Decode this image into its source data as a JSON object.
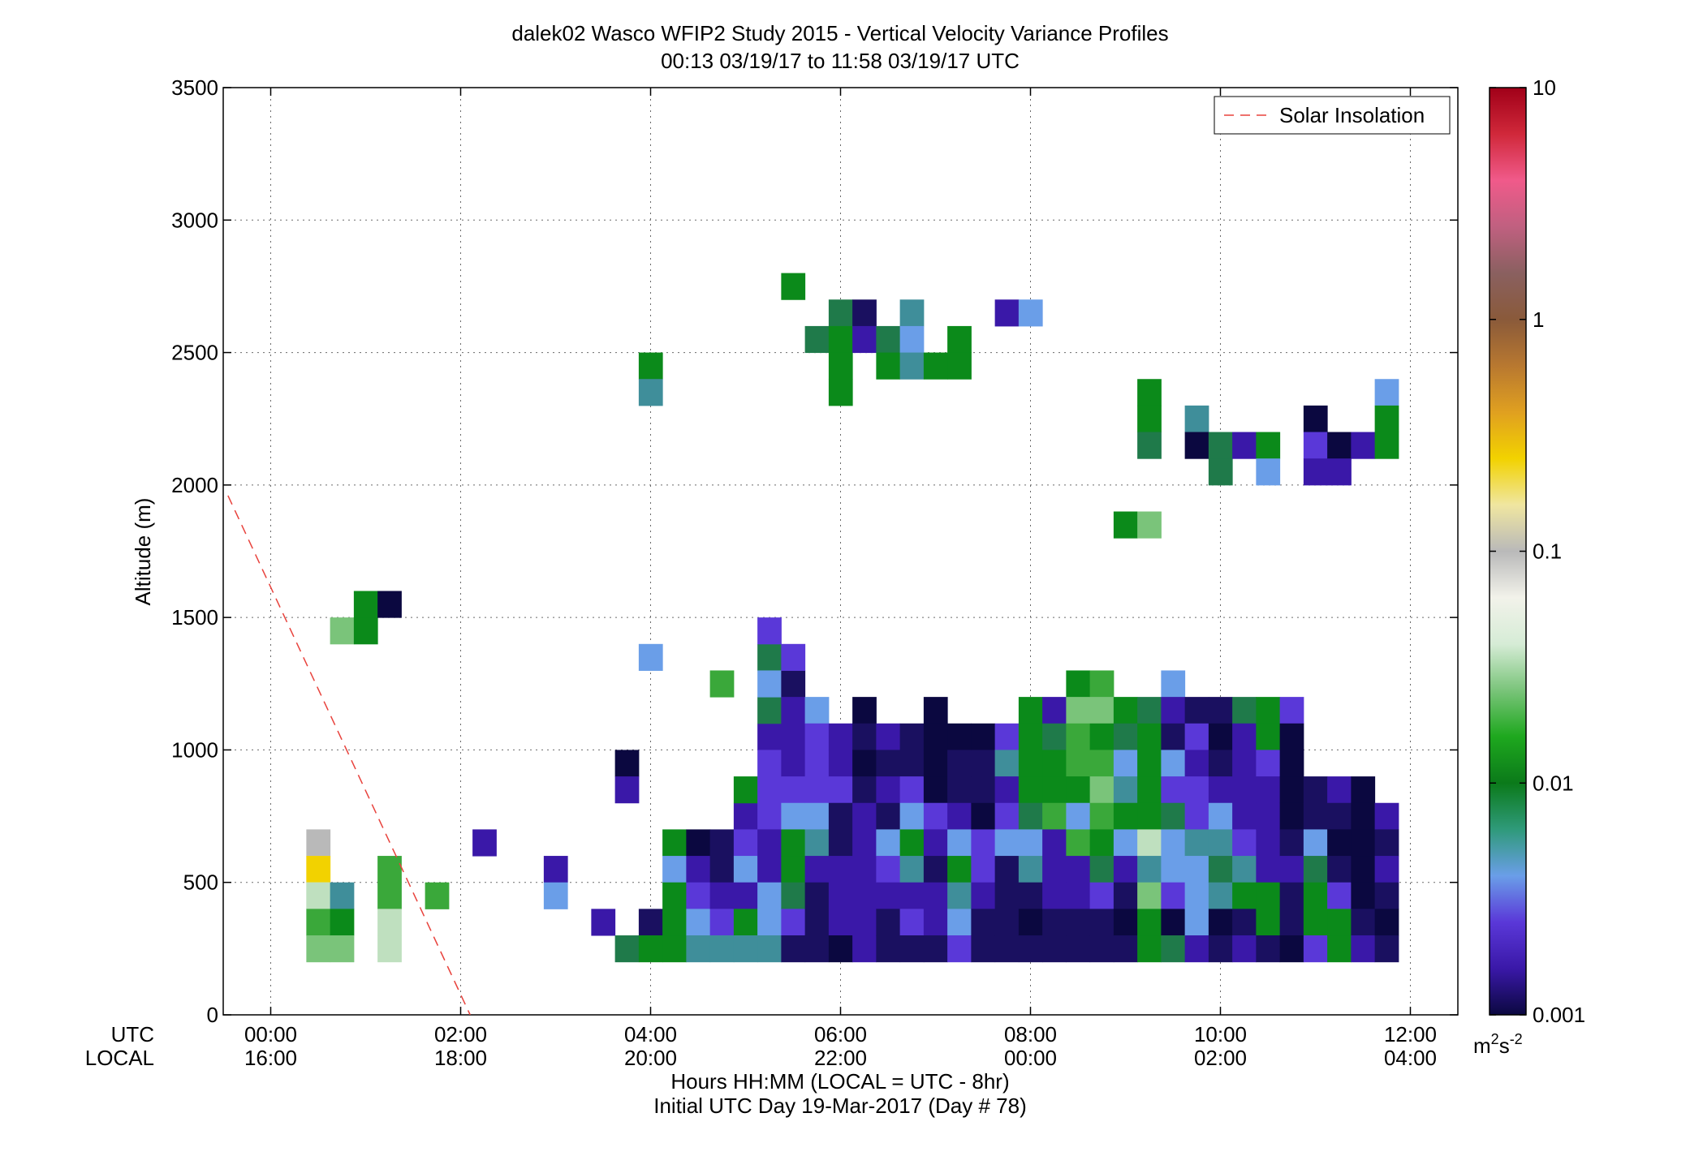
{
  "chart_data": {
    "type": "heatmap",
    "title": "dalek02 Wasco WFIP2 Study 2015 - Vertical Velocity Variance Profiles",
    "subtitle": "00:13 03/19/17 to 11:58 03/19/17  UTC",
    "ylabel": "Altitude (m)",
    "xlabel_lines": [
      "Hours HH:MM  (LOCAL = UTC - 8hr)",
      "Initial UTC Day 19-Mar-2017 (Day # 78)"
    ],
    "x_row_labels": [
      "UTC",
      "LOCAL"
    ],
    "xlim": [
      -0.5,
      12.5
    ],
    "ylim": [
      0,
      3500
    ],
    "xticks_utc": [
      "00:00",
      "02:00",
      "04:00",
      "06:00",
      "08:00",
      "10:00",
      "12:00"
    ],
    "xticks_local": [
      "16:00",
      "18:00",
      "20:00",
      "22:00",
      "00:00",
      "02:00",
      "04:00"
    ],
    "yticks": [
      "0",
      "500",
      "1000",
      "1500",
      "2000",
      "2500",
      "3000",
      "3500"
    ],
    "grid": true,
    "legend": {
      "position": "top-right",
      "entries": [
        "Solar Insolation"
      ]
    },
    "solar_insolation_line": {
      "x": [
        -0.45,
        2.1
      ],
      "y": [
        1960,
        0
      ],
      "color": "#e8423c"
    },
    "colorbar": {
      "scale": "log",
      "range": [
        0.001,
        10
      ],
      "tick_labels": [
        "0.001",
        "0.01",
        "0.1",
        "1",
        "10"
      ],
      "unit_label": "m²s⁻²",
      "stops": [
        "#0b0840",
        "#3a18a8",
        "#5a38d8",
        "#6a9ee8",
        "#2f9a7a",
        "#0b7a1a",
        "#1ea81e",
        "#7ac47a",
        "#d6ecd6",
        "#f2f2ea",
        "#b9b9b9",
        "#f0e6a0",
        "#f2d200",
        "#e0a020",
        "#b87830",
        "#8a5a3a",
        "#8a6060",
        "#c06080",
        "#f05a8a",
        "#d0283a",
        "#a00018"
      ]
    },
    "cell_size": {
      "dt_hours": 0.25,
      "dz_m": 100
    },
    "colors": {
      "D": "#0b0840",
      "N": "#1a1060",
      "V": "#3a18a8",
      "P": "#5a38d8",
      "L": "#6a9ee8",
      "T": "#3f8e9a",
      "E": "#1f7a4a",
      "G": "#0b8a1a",
      "M": "#3aa83a",
      "S": "#7ac47a",
      "W": "#bfe0bf",
      "C": "#d6ead6",
      "Y": "#f2d200",
      "K": "#f0e6bc",
      "A": "#b9b9b9"
    },
    "columns": [
      {
        "t": 0.5,
        "cells": "A:650 K:550 Y:550 C:450 W:450 M:350 S:250"
      },
      {
        "t": 0.75,
        "cells": "T:450 G:350 S:250 S:1450"
      },
      {
        "t": 1.0,
        "cells": "G:1550 G:1450"
      },
      {
        "t": 1.25,
        "cells": "D:1550 M:550 M:450 W:350 W:250"
      },
      {
        "t": 1.75,
        "cells": "M:450"
      },
      {
        "t": 2.25,
        "cells": "V:650"
      },
      {
        "t": 3.0,
        "cells": "V:550 L:450"
      },
      {
        "t": 3.5,
        "cells": "V:350"
      },
      {
        "t": 3.75,
        "cells": "D:950 V:850 E:250"
      },
      {
        "t": 4.0,
        "cells": "N:350 G:250 L:1350 G:2450 T:2350"
      },
      {
        "t": 4.25,
        "cells": "G:650 L:550 G:450 G:350 G:250"
      },
      {
        "t": 4.5,
        "cells": "D:650 V:550 P:450 L:350 T:250"
      },
      {
        "t": 4.75,
        "cells": "N:650 N:550 V:450 P:350 T:250 M:1250"
      },
      {
        "t": 5.0,
        "cells": "V:750 P:650 L:550 V:450 G:350 T:250 G:850"
      },
      {
        "t": 5.25,
        "cells": "V:1050 P:950 P:850 P:750 V:650 V:550 L:450 L:350 T:250 E:1150 E:1350 L:1250 P:1450"
      },
      {
        "t": 5.5,
        "cells": "N:1250 V:1150 V:1050 V:950 P:850 L:750 G:650 G:550 E:450 P:350 N:250 P:1350 G:2750"
      },
      {
        "t": 5.75,
        "cells": "L:1150 P:1050 P:950 P:850 L:750 T:650 V:550 N:450 N:350 N:250 E:2550"
      },
      {
        "t": 6.0,
        "cells": "V:1050 V:950 P:850 N:750 N:650 V:550 V:450 V:350 D:250 E:2650 G:2550 G:2450 G:2350"
      },
      {
        "t": 6.25,
        "cells": "D:1150 N:1050 D:950 N:850 V:750 V:650 V:550 V:450 V:350 V:250 N:2650 V:2550"
      },
      {
        "t": 6.5,
        "cells": "V:1050 N:950 V:850 N:750 L:650 P:550 V:450 N:350 N:250 E:2550 G:2450"
      },
      {
        "t": 6.75,
        "cells": "N:1050 N:950 P:850 L:750 G:650 T:550 V:450 P:350 N:250 T:2650 L:2550 T:2450"
      },
      {
        "t": 7.0,
        "cells": "D:1150 D:1050 D:950 D:850 P:750 V:650 N:550 V:450 V:350 N:250 G:2450"
      },
      {
        "t": 7.25,
        "cells": "D:1050 N:950 N:850 V:750 L:650 G:550 T:450 L:350 P:250 G:2550 G:2450"
      },
      {
        "t": 7.5,
        "cells": "D:1050 N:950 N:850 D:750 P:650 P:550 V:450 N:350 N:250"
      },
      {
        "t": 7.75,
        "cells": "P:1050 T:950 V:850 P:750 L:650 N:550 N:450 N:350 N:250 V:2650"
      },
      {
        "t": 8.0,
        "cells": "G:1150 G:1050 G:950 G:850 E:750 L:650 T:550 N:450 D:350 N:250 L:2650"
      },
      {
        "t": 8.25,
        "cells": "V:1150 E:1050 G:950 G:850 M:750 V:650 V:550 V:450 N:350 N:250"
      },
      {
        "t": 8.5,
        "cells": "G:1250 S:1150 M:1050 M:950 G:850 L:750 M:650 V:550 V:450 N:350 N:250"
      },
      {
        "t": 8.75,
        "cells": "M:1250 S:1150 G:1050 M:950 S:850 M:750 G:650 E:550 P:450 N:350 N:250"
      },
      {
        "t": 9.0,
        "cells": "G:1150 E:1050 L:950 T:850 G:750 L:650 V:550 N:450 D:350 N:250 G:1850"
      },
      {
        "t": 9.25,
        "cells": "E:1150 G:1050 G:950 G:850 G:750 W:650 T:550 S:450 G:350 G:250 S:1850 G:2350 G:2250 E:2150"
      },
      {
        "t": 9.5,
        "cells": "L:1250 V:1150 N:1050 L:950 P:850 E:750 L:650 L:550 P:450 D:350 E:250"
      },
      {
        "t": 9.75,
        "cells": "N:1150 P:1050 V:950 P:850 P:750 T:650 L:550 L:450 L:350 V:250 T:2250 D:2150"
      },
      {
        "t": 10.0,
        "cells": "N:1150 D:1050 N:950 V:850 L:750 T:650 E:550 T:450 D:350 N:250 E:2150 E:2050"
      },
      {
        "t": 10.25,
        "cells": "E:1150 V:1050 V:950 V:850 V:750 P:650 T:550 G:450 N:350 V:250 V:2150"
      },
      {
        "t": 10.5,
        "cells": "G:1150 G:1050 P:950 V:850 V:750 V:650 V:550 G:450 G:350 N:250 G:2150 L:2050"
      },
      {
        "t": 10.75,
        "cells": "P:1150 D:1050 D:950 D:850 D:750 N:650 V:550 N:450 N:350 D:250"
      },
      {
        "t": 11.0,
        "cells": "N:850 N:750 L:650 E:550 G:450 G:350 P:250 D:2250 P:2150 V:2050"
      },
      {
        "t": 11.25,
        "cells": "V:850 N:750 D:650 N:550 P:450 G:350 G:250 D:2150 V:2050"
      },
      {
        "t": 11.5,
        "cells": "D:850 D:750 D:650 D:550 D:450 N:350 V:250 V:2150"
      },
      {
        "t": 11.75,
        "cells": "V:750 N:650 V:550 N:450 D:350 N:250 L:2350 G:2250 G:2150"
      }
    ]
  }
}
